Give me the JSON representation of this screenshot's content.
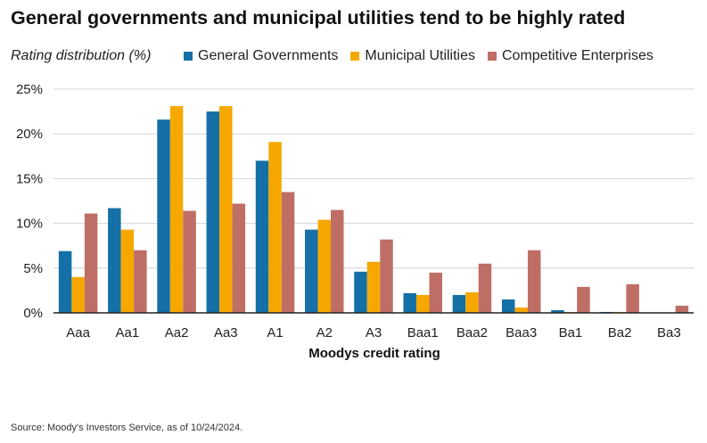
{
  "title": "General governments and municipal utilities tend to be highly rated",
  "source": "Source: Moody's Investors Service, as of 10/24/2024.",
  "chart_data": {
    "type": "bar",
    "title": "General governments and municipal utilities tend to be highly rated",
    "ylabel": "Rating distribution (%)",
    "xlabel": "Moodys credit rating",
    "ylim": [
      0,
      25
    ],
    "yticks": [
      0,
      5,
      10,
      15,
      20,
      25
    ],
    "ytick_labels": [
      "0%",
      "5%",
      "10%",
      "15%",
      "20%",
      "25%"
    ],
    "grid": true,
    "legend_position": "top",
    "categories": [
      "Aaa",
      "Aa1",
      "Aa2",
      "Aa3",
      "A1",
      "A2",
      "A3",
      "Baa1",
      "Baa2",
      "Baa3",
      "Ba1",
      "Ba2",
      "Ba3"
    ],
    "series": [
      {
        "name": "General Governments",
        "color": "#1470A6",
        "values": [
          6.9,
          11.7,
          21.6,
          22.5,
          17.0,
          9.3,
          4.6,
          2.2,
          2.0,
          1.5,
          0.3,
          0.1,
          0.0
        ]
      },
      {
        "name": "Municipal Utilities",
        "color": "#F6A800",
        "values": [
          4.0,
          9.3,
          23.1,
          23.1,
          19.1,
          10.4,
          5.7,
          2.0,
          2.3,
          0.6,
          0.1,
          0.1,
          0.0
        ]
      },
      {
        "name": "Competitive Enterprises",
        "color": "#BF6E66",
        "values": [
          11.1,
          7.0,
          11.4,
          12.2,
          13.5,
          11.5,
          8.2,
          4.5,
          5.5,
          7.0,
          2.9,
          3.2,
          0.8
        ]
      }
    ]
  }
}
